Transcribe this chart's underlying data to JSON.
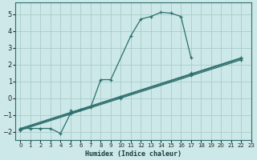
{
  "xlabel": "Humidex (Indice chaleur)",
  "bg_color": "#cce8e8",
  "grid_color": "#aacccc",
  "line_color": "#2e6e6e",
  "xlim": [
    -0.5,
    23
  ],
  "ylim": [
    -2.5,
    5.7
  ],
  "xticks": [
    0,
    1,
    2,
    3,
    4,
    5,
    6,
    7,
    8,
    9,
    10,
    11,
    12,
    13,
    14,
    15,
    16,
    17,
    18,
    19,
    20,
    21,
    22,
    23
  ],
  "yticks": [
    -2,
    -1,
    0,
    1,
    2,
    3,
    4,
    5
  ],
  "main_curve_x": [
    0,
    1,
    2,
    3,
    4,
    5,
    6,
    7,
    8,
    9,
    11,
    12,
    13,
    14,
    15,
    16,
    17
  ],
  "main_curve_y": [
    -1.8,
    -1.8,
    -1.8,
    -1.8,
    -2.1,
    -0.9,
    -0.7,
    -0.55,
    1.1,
    1.1,
    3.7,
    4.7,
    4.85,
    5.1,
    5.05,
    4.85,
    2.4
  ],
  "line1_x": [
    0,
    22
  ],
  "line1_y": [
    -1.8,
    2.4
  ],
  "line2_x": [
    0,
    22
  ],
  "line2_y": [
    -1.85,
    2.35
  ],
  "line3_x": [
    0,
    22
  ],
  "line3_y": [
    -1.9,
    2.28
  ],
  "line1_markers_x": [
    0,
    5,
    10,
    17,
    22
  ],
  "line1_markers_y": [
    -1.8,
    -0.75,
    0.1,
    1.5,
    2.4
  ],
  "line2_markers_x": [
    0,
    5,
    10,
    17,
    22
  ],
  "line2_markers_y": [
    -1.85,
    -0.8,
    0.05,
    1.42,
    2.35
  ],
  "line3_markers_x": [
    0,
    5,
    10,
    17,
    22
  ],
  "line3_markers_y": [
    -1.9,
    -0.88,
    -0.02,
    1.35,
    2.28
  ]
}
